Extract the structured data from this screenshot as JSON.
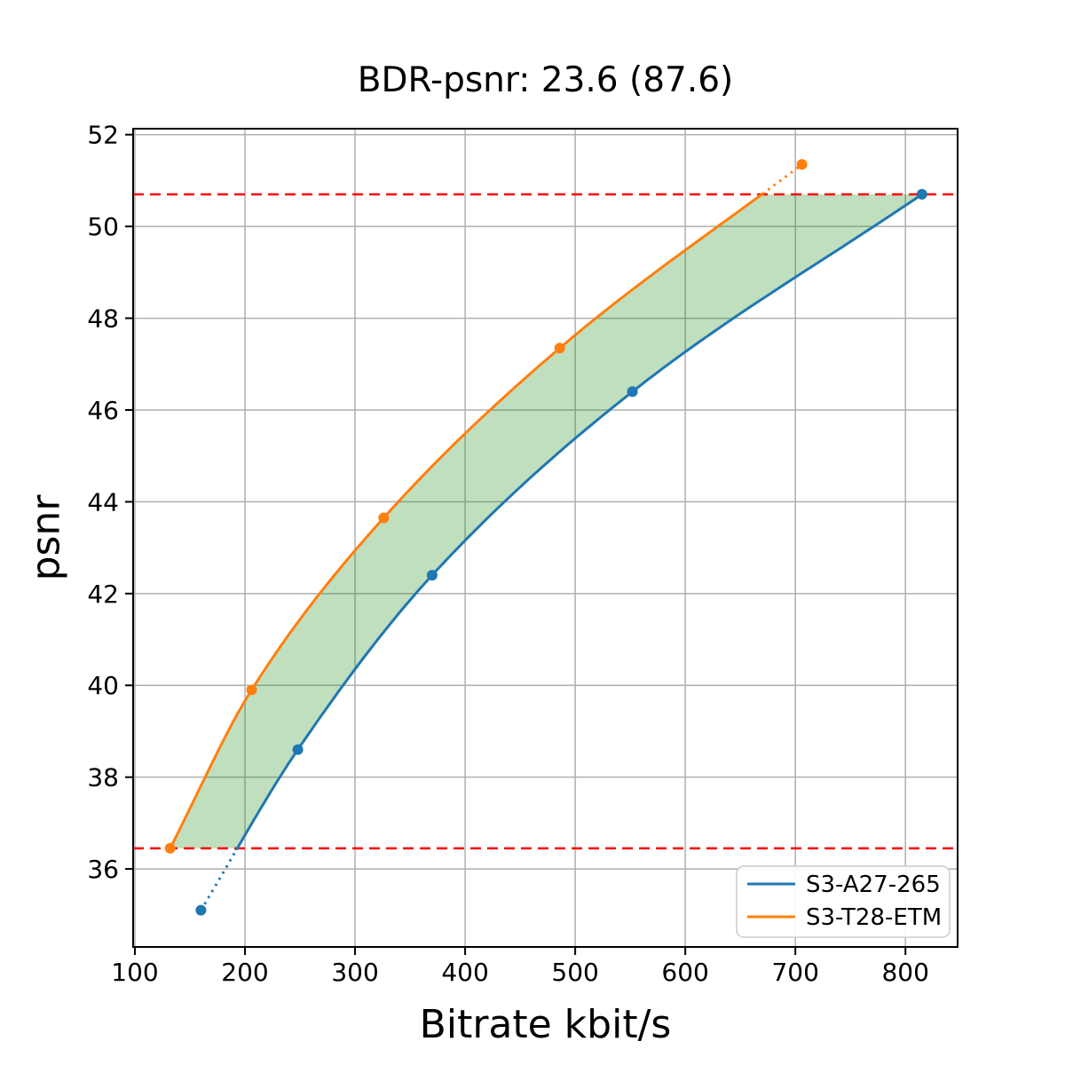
{
  "title": "BDR-psnr: 23.6 (87.6)",
  "chart_data": {
    "type": "line",
    "title": "BDR-psnr: 23.6 (87.6)",
    "xlabel": "Bitrate kbit/s",
    "ylabel": "psnr",
    "xlim": [
      98.4,
      847.4
    ],
    "ylim": [
      34.3,
      52.13
    ],
    "xticks": [
      100,
      200,
      300,
      400,
      500,
      600,
      700,
      800
    ],
    "yticks": [
      36,
      38,
      40,
      42,
      44,
      46,
      48,
      50,
      52
    ],
    "grid": true,
    "grid_color": "#b0b0b0",
    "legend_position": "lower right",
    "series": [
      {
        "name": "S3-A27-265",
        "color": "#1f77b4",
        "marker": "o",
        "x": [
          160,
          248,
          370,
          552,
          815
        ],
        "y": [
          35.1,
          38.6,
          42.4,
          46.4,
          50.7
        ]
      },
      {
        "name": "S3-T28-ETM",
        "color": "#ff7f0e",
        "marker": "o",
        "x": [
          132,
          206,
          326,
          486,
          706
        ],
        "y": [
          36.45,
          39.9,
          43.65,
          47.35,
          51.35
        ]
      }
    ],
    "hlines": [
      {
        "y": 50.7,
        "color": "#ff0000",
        "style": "dashed"
      },
      {
        "y": 36.45,
        "color": "#ff0000",
        "style": "dashed"
      }
    ],
    "band": {
      "upper_series": "S3-T28-ETM",
      "lower_series": "S3-A27-265",
      "clip_y": [
        36.45,
        50.7
      ],
      "fill": "#008000",
      "opacity": 0.25
    },
    "linestyle_outside_overlap": "dotted",
    "linestyle_inside_overlap": "solid"
  }
}
